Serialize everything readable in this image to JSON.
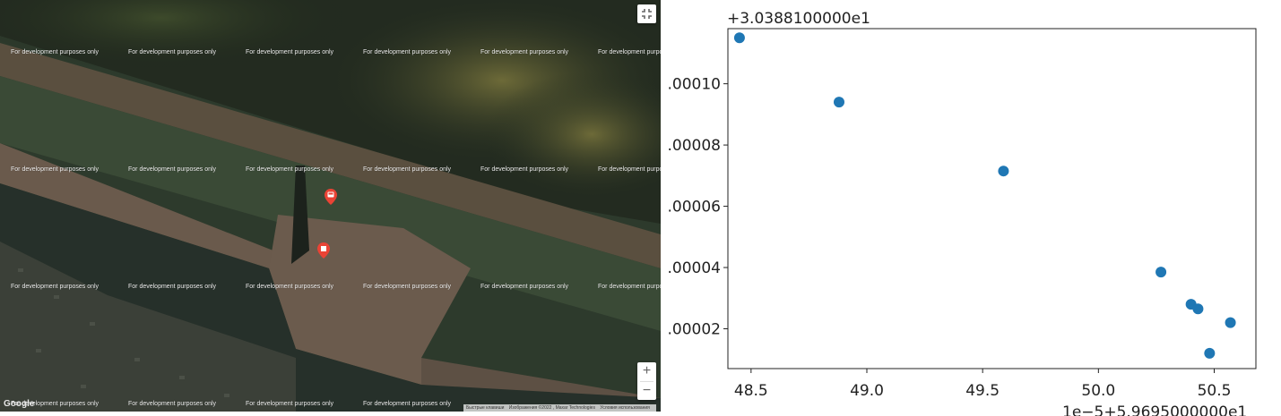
{
  "map": {
    "watermark_text": "For development purposes only",
    "google_label": "Google",
    "attribution": {
      "shortcuts": "Быстрые клавиши",
      "imagery": "Изображения ©2022 , Maxar Technologies",
      "terms": "Условия использования"
    },
    "markers": [
      {
        "name": "transit-marker",
        "icon": "bus-icon",
        "color": "#ea4335"
      },
      {
        "name": "place-marker",
        "icon": "place-icon",
        "color": "#ea4335"
      }
    ],
    "controls": {
      "fullscreen_icon": "fullscreen-icon",
      "zoom_in": "+",
      "zoom_out": "−"
    }
  },
  "chart_data": {
    "type": "scatter",
    "title": "",
    "xlabel": "",
    "ylabel": "",
    "x_offset_label": "1e−5+5.9695000000e1",
    "y_offset_label": "+3.0388100000e1",
    "x_ticks": [
      "48.5",
      "49.0",
      "49.5",
      "50.0",
      "50.5"
    ],
    "y_ticks": [
      ".00002",
      ".00004",
      ".00006",
      ".00008",
      ".00010"
    ],
    "xlim": [
      48.4,
      50.68
    ],
    "ylim": [
      7e-06,
      0.000118
    ],
    "grid": false,
    "color": "#1f77b4",
    "points": [
      {
        "x": 48.45,
        "y": 0.000115
      },
      {
        "x": 48.88,
        "y": 9.4e-05
      },
      {
        "x": 49.59,
        "y": 7.15e-05
      },
      {
        "x": 50.27,
        "y": 3.85e-05
      },
      {
        "x": 50.4,
        "y": 2.8e-05
      },
      {
        "x": 50.43,
        "y": 2.65e-05
      },
      {
        "x": 50.48,
        "y": 1.2e-05
      },
      {
        "x": 50.57,
        "y": 2.2e-05
      }
    ]
  }
}
